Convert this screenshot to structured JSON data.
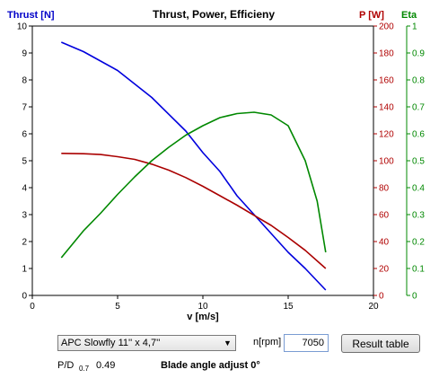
{
  "chart_data": {
    "type": "line",
    "title": "Thrust, Power, Efficieny",
    "xlabel": "v [m/s]",
    "xlim": [
      0,
      20
    ],
    "xticks": [
      0,
      5,
      10,
      15,
      20
    ],
    "y_axes": [
      {
        "label": "Thrust [N]",
        "side": "left",
        "color": "#0000c8",
        "range": [
          0,
          10
        ],
        "ticks": [
          0,
          1,
          2,
          3,
          4,
          5,
          6,
          7,
          8,
          9,
          10
        ]
      },
      {
        "label": "P [W]",
        "side": "right",
        "color": "#b00000",
        "range": [
          0,
          200
        ],
        "ticks": [
          0,
          20,
          40,
          60,
          80,
          100,
          120,
          140,
          160,
          180,
          200
        ]
      },
      {
        "label": "Eta",
        "side": "right",
        "color": "#008800",
        "range": [
          0,
          1
        ],
        "ticks": [
          0,
          0.1,
          0.2,
          0.3,
          0.4,
          0.5,
          0.6,
          0.7,
          0.8,
          0.9,
          1
        ]
      }
    ],
    "series": [
      {
        "axis": 0,
        "color": "#0000dd",
        "points": [
          [
            1.7,
            9.4
          ],
          [
            3,
            9.05
          ],
          [
            5,
            8.35
          ],
          [
            7,
            7.35
          ],
          [
            9,
            6.1
          ],
          [
            10,
            5.3
          ],
          [
            11,
            4.6
          ],
          [
            12,
            3.7
          ],
          [
            13,
            3.0
          ],
          [
            14,
            2.3
          ],
          [
            15,
            1.6
          ],
          [
            16,
            1.0
          ],
          [
            17.2,
            0.2
          ]
        ]
      },
      {
        "axis": 1,
        "color": "#aa0000",
        "points": [
          [
            1.7,
            105.5
          ],
          [
            3,
            105.2
          ],
          [
            4,
            104.6
          ],
          [
            5,
            103
          ],
          [
            6,
            101
          ],
          [
            7,
            97.5
          ],
          [
            8,
            93
          ],
          [
            9,
            87.5
          ],
          [
            10,
            81
          ],
          [
            11,
            74
          ],
          [
            12,
            67
          ],
          [
            13,
            59.5
          ],
          [
            14,
            52
          ],
          [
            15,
            43
          ],
          [
            16,
            33.5
          ],
          [
            17.2,
            20
          ]
        ]
      },
      {
        "axis": 2,
        "color": "#008800",
        "points": [
          [
            1.7,
            0.14
          ],
          [
            3,
            0.24
          ],
          [
            4,
            0.305
          ],
          [
            5,
            0.375
          ],
          [
            6,
            0.44
          ],
          [
            7,
            0.5
          ],
          [
            8,
            0.55
          ],
          [
            9,
            0.595
          ],
          [
            10,
            0.63
          ],
          [
            11,
            0.66
          ],
          [
            12,
            0.675
          ],
          [
            13,
            0.68
          ],
          [
            14,
            0.67
          ],
          [
            15,
            0.63
          ],
          [
            16,
            0.5
          ],
          [
            16.7,
            0.35
          ],
          [
            17.2,
            0.16
          ]
        ]
      }
    ]
  },
  "controls": {
    "propeller_value": "APC Slowfly 11'' x 4,7''",
    "rpm_label": "n[rpm]",
    "rpm_value": "7050",
    "result_button": "Result table",
    "pd_label": "P/D",
    "pd_subscript": "0.7",
    "pd_value": "0.49",
    "blade_angle_label": "Blade angle adjust 0°"
  }
}
